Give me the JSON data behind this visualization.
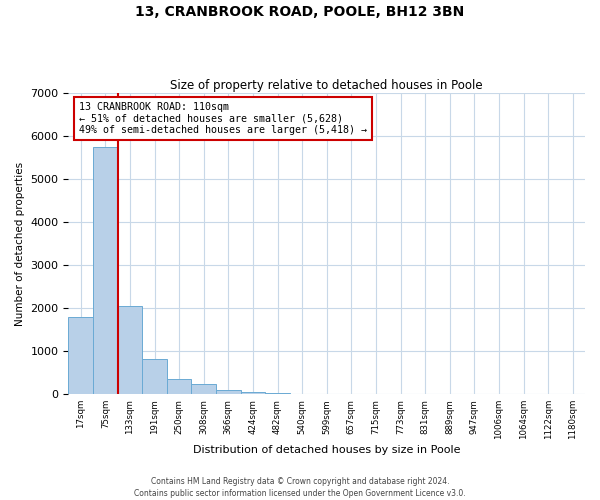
{
  "title": "13, CRANBROOK ROAD, POOLE, BH12 3BN",
  "subtitle": "Size of property relative to detached houses in Poole",
  "xlabel": "Distribution of detached houses by size in Poole",
  "ylabel": "Number of detached properties",
  "bar_labels": [
    "17sqm",
    "75sqm",
    "133sqm",
    "191sqm",
    "250sqm",
    "308sqm",
    "366sqm",
    "424sqm",
    "482sqm",
    "540sqm",
    "599sqm",
    "657sqm",
    "715sqm",
    "773sqm",
    "831sqm",
    "889sqm",
    "947sqm",
    "1006sqm",
    "1064sqm",
    "1122sqm",
    "1180sqm"
  ],
  "bar_values": [
    1800,
    5750,
    2050,
    820,
    360,
    230,
    100,
    55,
    30,
    15,
    8,
    5,
    3,
    0,
    0,
    0,
    0,
    0,
    0,
    0,
    0
  ],
  "bar_color": "#b8d0e8",
  "bar_edge_color": "#6aaad4",
  "vline_color": "#cc0000",
  "ylim": [
    0,
    7000
  ],
  "annotation_text": "13 CRANBROOK ROAD: 110sqm\n← 51% of detached houses are smaller (5,628)\n49% of semi-detached houses are larger (5,418) →",
  "annotation_box_color": "#ffffff",
  "annotation_box_edge": "#cc0000",
  "footer1": "Contains HM Land Registry data © Crown copyright and database right 2024.",
  "footer2": "Contains public sector information licensed under the Open Government Licence v3.0.",
  "background_color": "#ffffff",
  "grid_color": "#c8d8e8"
}
